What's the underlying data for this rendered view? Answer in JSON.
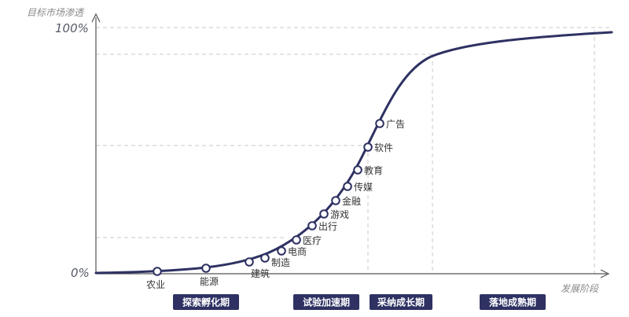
{
  "y_axis_title": "目标市场渗透",
  "x_axis_title": "发展阶段",
  "y_top_label": "100%",
  "y_bottom_label": "0%",
  "colors": {
    "curve": "#2e3162",
    "stage_bg": "#2e3162",
    "axis": "#555555",
    "guide": "#c8c8c8"
  },
  "industries": [
    {
      "label": "农业"
    },
    {
      "label": "能源"
    },
    {
      "label": "建筑"
    },
    {
      "label": "制造"
    },
    {
      "label": "电商"
    },
    {
      "label": "医疗"
    },
    {
      "label": "出行"
    },
    {
      "label": "游戏"
    },
    {
      "label": "金融"
    },
    {
      "label": "传媒"
    },
    {
      "label": "教育"
    },
    {
      "label": "软件"
    },
    {
      "label": "广告"
    }
  ],
  "stages": [
    {
      "label": "探索孵化期"
    },
    {
      "label": "试验加速期"
    },
    {
      "label": "采纳成长期"
    },
    {
      "label": "落地成熟期"
    }
  ]
}
